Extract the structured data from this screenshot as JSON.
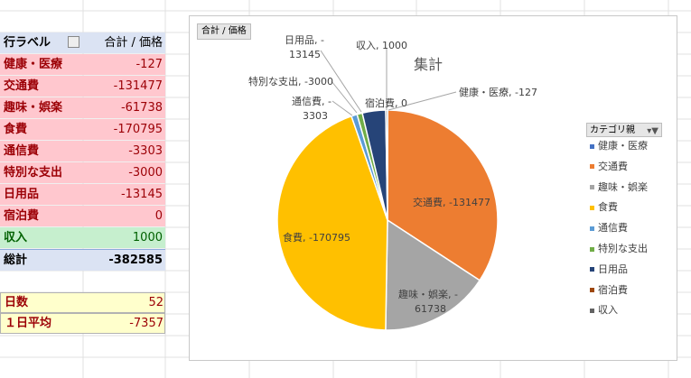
{
  "pivot": {
    "header": {
      "label": "行ラベル",
      "value": "合計 / 価格"
    },
    "rows": [
      {
        "label": "健康・医療",
        "value": "-127"
      },
      {
        "label": "交通費",
        "value": "-131477"
      },
      {
        "label": "趣味・娯楽",
        "value": "-61738"
      },
      {
        "label": "食費",
        "value": "-170795"
      },
      {
        "label": "通信費",
        "value": "-3303"
      },
      {
        "label": "特別な支出",
        "value": "-3000"
      },
      {
        "label": "日用品",
        "value": "-13145"
      },
      {
        "label": "宿泊費",
        "value": "0"
      }
    ],
    "income": {
      "label": "収入",
      "value": "1000"
    },
    "total": {
      "label": "総計",
      "value": "-382585"
    }
  },
  "stats": {
    "days": {
      "label": "日数",
      "value": "52"
    },
    "daily_avg": {
      "label": "１日平均",
      "value": "-7357"
    }
  },
  "chart": {
    "field_button": "合計 / 価格",
    "legend_field": "カテゴリ親",
    "labels": {
      "health": "健康・医療, -127",
      "transport": "交通費, -131477",
      "hobby_1": "趣味・娯楽, -",
      "hobby_2": "61738",
      "food": "食費, -170795",
      "telecom_1": "通信費, -",
      "telecom_2": "3303",
      "special": "特別な支出, -3000",
      "daily_1": "日用品, -",
      "daily_2": "13145",
      "lodging": "宿泊費, 0",
      "income": "収入, 1000"
    }
  },
  "chart_data": {
    "type": "pie",
    "title": "集計",
    "categories": [
      "健康・医療",
      "交通費",
      "趣味・娯楽",
      "食費",
      "通信費",
      "特別な支出",
      "日用品",
      "宿泊費",
      "収入"
    ],
    "values": [
      -127,
      -131477,
      -61738,
      -170795,
      -3303,
      -3000,
      -13145,
      0,
      1000
    ],
    "colors": [
      "#4472c4",
      "#ed7d31",
      "#a5a5a5",
      "#ffc000",
      "#5b9bd5",
      "#70ad47",
      "#264478",
      "#9e480e",
      "#636363"
    ],
    "legend": "right"
  }
}
